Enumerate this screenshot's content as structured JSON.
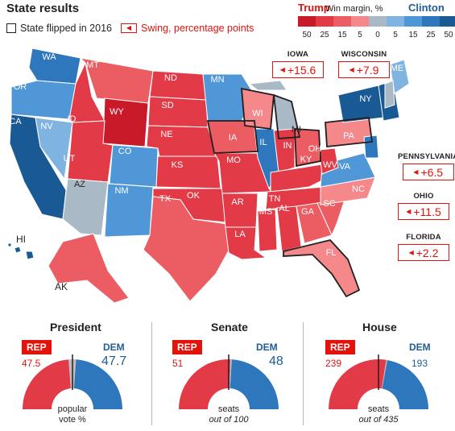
{
  "title": "State results",
  "legend": {
    "flipped": "State flipped in 2016",
    "swing": "Swing, percentage points"
  },
  "win_margin": {
    "left_label": "Trump",
    "mid_label": "Win margin, %",
    "right_label": "Clinton",
    "ticks": [
      "50",
      "25",
      "15",
      "5",
      "0",
      "5",
      "15",
      "25",
      "50"
    ],
    "colors": [
      "#c91a2a",
      "#e23a47",
      "#ec5d63",
      "#f4888a",
      "#a9b9c6",
      "#7fb3e0",
      "#4f97d6",
      "#2f77bd",
      "#195a94"
    ],
    "trump_color": "#e3120b",
    "clinton_color": "#1f5c99"
  },
  "swings": [
    {
      "state": "IOWA",
      "value": "+15.6"
    },
    {
      "state": "WISCONSIN",
      "value": "+7.9"
    },
    {
      "state": "PENNSYLVANIA",
      "value": "+6.5"
    },
    {
      "state": "OHIO",
      "value": "+11.5"
    },
    {
      "state": "FLORIDA",
      "value": "+2.2"
    }
  ],
  "states": {
    "WA": "WA",
    "OR": "OR",
    "CA": "CA",
    "NV": "NV",
    "ID": "ID",
    "MT": "MT",
    "WY": "WY",
    "UT": "UT",
    "AZ": "AZ",
    "CO": "CO",
    "NM": "NM",
    "ND": "ND",
    "SD": "SD",
    "NE": "NE",
    "KS": "KS",
    "OK": "OK",
    "TX": "TX",
    "MN": "MN",
    "IA": "IA",
    "MO": "MO",
    "AR": "AR",
    "LA": "LA",
    "WI": "WI",
    "IL": "IL",
    "MI": "MI",
    "IN": "IN",
    "OH": "OH",
    "KY": "KY",
    "TN": "TN",
    "MS": "MS",
    "AL": "AL",
    "GA": "GA",
    "FL": "FL",
    "SC": "SC",
    "NC": "NC",
    "VA": "VA",
    "WV": "WV",
    "PA": "PA",
    "NY": "NY",
    "ME": "ME",
    "HI": "HI",
    "AK": "AK"
  },
  "chart_data": [
    {
      "type": "pie",
      "title": "President",
      "rep_label": "REP",
      "dem_label": "DEM",
      "rep": 47.5,
      "dem": 47.7,
      "other": 4.8,
      "rep_text": "47.5",
      "dem_text": "47.7",
      "caption_line1": "popular",
      "caption_line2": "vote %"
    },
    {
      "type": "pie",
      "title": "Senate",
      "rep_label": "REP",
      "dem_label": "DEM",
      "rep": 51,
      "dem": 48,
      "other": 1,
      "rep_text": "51",
      "dem_text": "48",
      "caption_line1": "seats",
      "caption_line2": "out of 100"
    },
    {
      "type": "pie",
      "title": "House",
      "rep_label": "REP",
      "dem_label": "DEM",
      "rep": 239,
      "dem": 193,
      "other": 3,
      "rep_text": "239",
      "dem_text": "193",
      "caption_line1": "seats",
      "caption_line2": "out of 435"
    }
  ]
}
